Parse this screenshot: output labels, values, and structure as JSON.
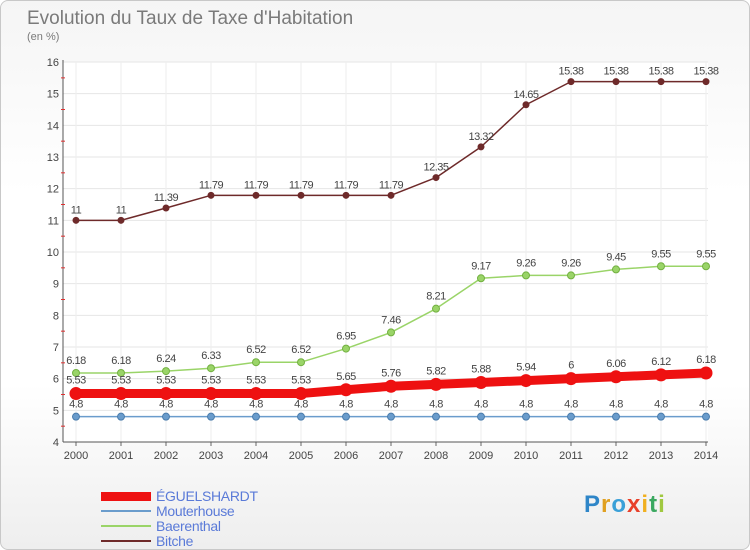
{
  "title": "Evolution du Taux de Taxe d'Habitation",
  "unit": "(en %)",
  "logo_text": "Proxiti",
  "chart_data": {
    "type": "line",
    "x": [
      "2000",
      "2001",
      "2002",
      "2003",
      "2004",
      "2005",
      "2006",
      "2007",
      "2008",
      "2009",
      "2010",
      "2011",
      "2012",
      "2013",
      "2014"
    ],
    "ylim": [
      4,
      16
    ],
    "yticks": [
      4,
      5,
      6,
      7,
      8,
      9,
      10,
      11,
      12,
      13,
      14,
      15,
      16
    ],
    "grid": true,
    "legend_position": "bottom-left",
    "series": [
      {
        "name": "Bitche",
        "color": "#6e2a2a",
        "values": [
          11,
          11,
          11.39,
          11.79,
          11.79,
          11.79,
          11.79,
          11.79,
          12.35,
          13.32,
          14.65,
          15.38,
          15.38,
          15.38,
          15.38
        ],
        "labels": [
          "11",
          "11",
          "11.39",
          "11.79",
          "11.79",
          "11.79",
          "11.79",
          "11.79",
          "12.35",
          "13.32",
          "14.65",
          "15.38",
          "15.38",
          "15.38",
          "15.38"
        ]
      },
      {
        "name": "Baerenthal",
        "color": "#9ad468",
        "values": [
          6.18,
          6.18,
          6.24,
          6.33,
          6.52,
          6.52,
          6.95,
          7.46,
          8.21,
          9.17,
          9.26,
          9.26,
          9.45,
          9.55,
          9.55
        ],
        "labels": [
          "6.18",
          "6.18",
          "6.24",
          "6.33",
          "6.52",
          "6.52",
          "6.95",
          "7.46",
          "8.21",
          "9.17",
          "9.26",
          "9.26",
          "9.45",
          "9.55",
          "9.55"
        ]
      },
      {
        "name": "ÉGUELSHARDT",
        "color": "#ee1111",
        "values": [
          5.53,
          5.53,
          5.53,
          5.53,
          5.53,
          5.53,
          5.65,
          5.76,
          5.82,
          5.88,
          5.94,
          6,
          6.06,
          6.12,
          6.18
        ],
        "labels": [
          "5.53",
          "5.53",
          "5.53",
          "5.53",
          "5.53",
          "5.53",
          "5.65",
          "5.76",
          "5.82",
          "5.88",
          "5.94",
          "6",
          "6.06",
          "6.12",
          "6.18"
        ]
      },
      {
        "name": "Mouterhouse",
        "color": "#6a9ccc",
        "values": [
          4.8,
          4.8,
          4.8,
          4.8,
          4.8,
          4.8,
          4.8,
          4.8,
          4.8,
          4.8,
          4.8,
          4.8,
          4.8,
          4.8,
          4.8
        ],
        "labels": [
          "4.8",
          "4.8",
          "4.8",
          "4.8",
          "4.8",
          "4.8",
          "4.8",
          "4.8",
          "4.8",
          "4.8",
          "4.8",
          "4.8",
          "4.8",
          "4.8",
          "4.8"
        ]
      }
    ]
  },
  "legend": [
    {
      "name": "ÉGUELSHARDT",
      "color": "#ee1111"
    },
    {
      "name": "Mouterhouse",
      "color": "#6a9ccc"
    },
    {
      "name": "Baerenthal",
      "color": "#9ad468"
    },
    {
      "name": "Bitche",
      "color": "#6e2a2a"
    }
  ]
}
